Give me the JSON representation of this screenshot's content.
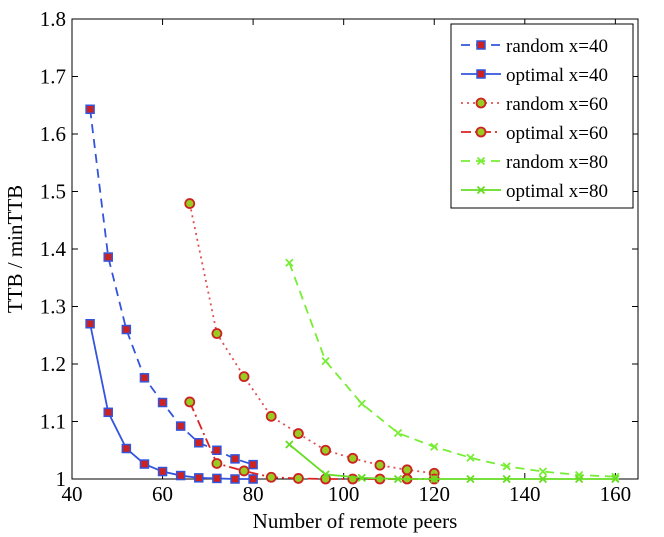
{
  "chart_data": {
    "type": "line",
    "title": "",
    "xlabel": "Number of remote peers",
    "ylabel": "TTB / minTTB",
    "xlim": [
      40,
      165
    ],
    "ylim": [
      1,
      1.8
    ],
    "xticks": [
      40,
      60,
      80,
      100,
      120,
      140,
      160
    ],
    "yticks": [
      1,
      1.1,
      1.2,
      1.3,
      1.4,
      1.5,
      1.6,
      1.7,
      1.8
    ],
    "xtick_labels": [
      "40",
      "60",
      "80",
      "100",
      "120",
      "140",
      "160"
    ],
    "ytick_labels": [
      "1",
      "1.1",
      "1.2",
      "1.3",
      "1.4",
      "1.5",
      "1.6",
      "1.7",
      "1.8"
    ],
    "grid": false,
    "legend_position": "top-right",
    "series": [
      {
        "name": "random x=40",
        "color": "#3355dd",
        "line_style": "dashed",
        "marker": "square",
        "marker_fill": "#cc2222",
        "x": [
          44,
          48,
          52,
          56,
          60,
          64,
          68,
          72,
          76,
          80
        ],
        "y": [
          1.643,
          1.386,
          1.26,
          1.176,
          1.133,
          1.092,
          1.063,
          1.05,
          1.035,
          1.025
        ]
      },
      {
        "name": "optimal x=40",
        "color": "#3355dd",
        "line_style": "solid",
        "marker": "square",
        "marker_fill": "#cc2222",
        "x": [
          44,
          48,
          52,
          56,
          60,
          64,
          68,
          72,
          76,
          80
        ],
        "y": [
          1.27,
          1.116,
          1.053,
          1.026,
          1.013,
          1.006,
          1.002,
          1.001,
          1.0,
          1.0
        ]
      },
      {
        "name": "random x=60",
        "color": "#e05050",
        "line_style": "dotted",
        "marker": "circle",
        "marker_fill": "#99cc22",
        "x": [
          66,
          72,
          78,
          84,
          90,
          96,
          102,
          108,
          114,
          120
        ],
        "y": [
          1.479,
          1.253,
          1.178,
          1.109,
          1.079,
          1.05,
          1.036,
          1.024,
          1.016,
          1.01
        ]
      },
      {
        "name": "optimal x=60",
        "color": "#dd2222",
        "line_style": "dashdot",
        "marker": "circle",
        "marker_fill": "#99cc22",
        "x": [
          66,
          72,
          78,
          84,
          90,
          96,
          102,
          108,
          114,
          120
        ],
        "y": [
          1.134,
          1.027,
          1.014,
          1.003,
          1.001,
          1.0,
          1.0,
          1.0,
          1.0,
          1.0
        ]
      },
      {
        "name": "random x=80",
        "color": "#77ee33",
        "line_style": "dashed",
        "marker": "x",
        "marker_fill": "#77ee33",
        "x": [
          88,
          96,
          104,
          112,
          120,
          128,
          136,
          144,
          152,
          160
        ],
        "y": [
          1.376,
          1.205,
          1.131,
          1.08,
          1.056,
          1.037,
          1.022,
          1.013,
          1.007,
          1.004
        ]
      },
      {
        "name": "optimal x=80",
        "color": "#66dd22",
        "line_style": "solid",
        "marker": "x",
        "marker_fill": "#66dd22",
        "x": [
          88,
          96,
          104,
          112,
          120,
          128,
          136,
          144,
          152,
          160
        ],
        "y": [
          1.06,
          1.008,
          1.002,
          1.0,
          1.0,
          1.0,
          1.0,
          1.0,
          1.0,
          1.0
        ]
      }
    ]
  }
}
